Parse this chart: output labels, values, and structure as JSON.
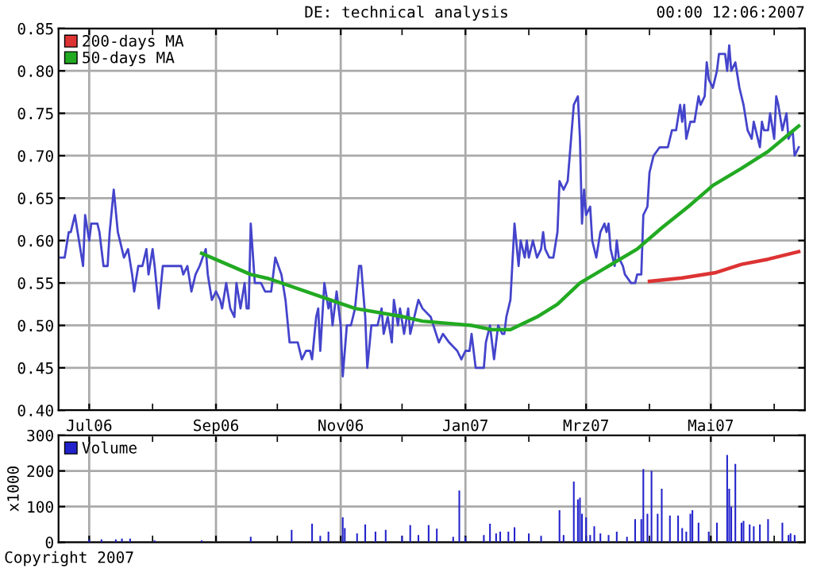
{
  "chart_data": [
    {
      "type": "line",
      "title": "DE: technical analysis",
      "annotations": [
        "00:00 12:06:2007",
        "Copyright 2007"
      ],
      "xlim": [
        "2006-06-16",
        "2007-06-16"
      ],
      "xticks": [
        {
          "value": "2006-07-01",
          "label": "Jul06"
        },
        {
          "value": "2006-08-01",
          "label": null
        },
        {
          "value": "2006-09-01",
          "label": "Sep06"
        },
        {
          "value": "2006-10-01",
          "label": null
        },
        {
          "value": "2006-11-01",
          "label": "Nov06"
        },
        {
          "value": "2006-12-01",
          "label": null
        },
        {
          "value": "2007-01-01",
          "label": "Jan07"
        },
        {
          "value": "2007-02-01",
          "label": null
        },
        {
          "value": "2007-03-01",
          "label": "Mrz07"
        },
        {
          "value": "2007-04-01",
          "label": null
        },
        {
          "value": "2007-05-01",
          "label": "Mai07"
        },
        {
          "value": "2007-06-01",
          "label": null
        }
      ],
      "ylim": [
        0.4,
        0.85
      ],
      "yticks": [
        {
          "value": 0.4,
          "label": "0.40"
        },
        {
          "value": 0.45,
          "label": "0.45"
        },
        {
          "value": 0.5,
          "label": "0.50"
        },
        {
          "value": 0.55,
          "label": "0.55"
        },
        {
          "value": 0.6,
          "label": "0.60"
        },
        {
          "value": 0.65,
          "label": "0.65"
        },
        {
          "value": 0.7,
          "label": "0.70"
        },
        {
          "value": 0.75,
          "label": "0.75"
        },
        {
          "value": 0.8,
          "label": "0.80"
        },
        {
          "value": 0.85,
          "label": "0.85"
        }
      ],
      "grid": true,
      "legend": "top left",
      "marker": "none",
      "line_style": "solid",
      "series": [
        {
          "color": "#4444cc",
          "x": [
            "2006-06-17",
            "2006-06-19",
            "2006-06-21",
            "2006-06-22",
            "2006-06-24",
            "2006-06-26",
            "2006-06-28",
            "2006-06-29",
            "2006-07-01",
            "2006-07-02",
            "2006-07-05",
            "2006-07-06",
            "2006-07-08",
            "2006-07-10",
            "2006-07-11",
            "2006-07-13",
            "2006-07-15",
            "2006-07-17",
            "2006-07-18",
            "2006-07-20",
            "2006-07-22",
            "2006-07-23",
            "2006-07-25",
            "2006-07-27",
            "2006-07-29",
            "2006-07-30",
            "2006-08-01",
            "2006-08-02",
            "2006-08-04",
            "2006-08-06",
            "2006-08-15",
            "2006-08-16",
            "2006-08-18",
            "2006-08-20",
            "2006-08-22",
            "2006-08-24",
            "2006-08-27",
            "2006-08-28",
            "2006-08-30",
            "2006-09-01",
            "2006-09-03",
            "2006-09-04",
            "2006-09-06",
            "2006-09-08",
            "2006-09-10",
            "2006-09-11",
            "2006-09-13",
            "2006-09-15",
            "2006-09-16",
            "2006-09-17",
            "2006-09-18",
            "2006-09-20",
            "2006-09-23",
            "2006-09-25",
            "2006-09-28",
            "2006-09-30",
            "2006-10-03",
            "2006-10-05",
            "2006-10-07",
            "2006-10-11",
            "2006-10-13",
            "2006-10-15",
            "2006-10-17",
            "2006-10-18",
            "2006-10-20",
            "2006-10-21",
            "2006-10-22",
            "2006-10-24",
            "2006-10-26",
            "2006-10-27",
            "2006-10-28",
            "2006-10-30",
            "2006-11-01",
            "2006-11-02",
            "2006-11-04",
            "2006-11-06",
            "2006-11-08",
            "2006-11-10",
            "2006-11-11",
            "2006-11-13",
            "2006-11-14",
            "2006-11-16",
            "2006-11-19",
            "2006-11-21",
            "2006-11-22",
            "2006-11-24",
            "2006-11-26",
            "2006-11-27",
            "2006-11-29",
            "2006-11-30",
            "2006-12-02",
            "2006-12-04",
            "2006-12-05",
            "2006-12-09",
            "2006-12-11",
            "2006-12-15",
            "2006-12-19",
            "2006-12-21",
            "2006-12-24",
            "2006-12-28",
            "2006-12-30",
            "2007-01-01",
            "2007-01-03",
            "2007-01-04",
            "2007-01-06",
            "2007-01-10",
            "2007-01-11",
            "2007-01-13",
            "2007-01-15",
            "2007-01-17",
            "2007-01-19",
            "2007-01-20",
            "2007-01-21",
            "2007-01-23",
            "2007-01-25",
            "2007-01-27",
            "2007-01-28",
            "2007-01-30",
            "2007-01-31",
            "2007-02-01",
            "2007-02-03",
            "2007-02-05",
            "2007-02-07",
            "2007-02-08",
            "2007-02-09",
            "2007-02-11",
            "2007-02-13",
            "2007-02-15",
            "2007-02-16",
            "2007-02-18",
            "2007-02-20",
            "2007-02-21",
            "2007-02-23",
            "2007-02-25",
            "2007-02-26",
            "2007-02-27",
            "2007-02-28",
            "2007-03-01",
            "2007-03-03",
            "2007-03-04",
            "2007-03-06",
            "2007-03-08",
            "2007-03-10",
            "2007-03-11",
            "2007-03-12",
            "2007-03-13",
            "2007-03-15",
            "2007-03-16",
            "2007-03-17",
            "2007-03-19",
            "2007-03-20",
            "2007-03-23",
            "2007-03-25",
            "2007-03-26",
            "2007-03-28",
            "2007-03-29",
            "2007-03-31",
            "2007-04-01",
            "2007-04-03",
            "2007-04-06",
            "2007-04-07",
            "2007-04-10",
            "2007-04-12",
            "2007-04-14",
            "2007-04-16",
            "2007-04-17",
            "2007-04-18",
            "2007-04-19",
            "2007-04-21",
            "2007-04-23",
            "2007-04-25",
            "2007-04-26",
            "2007-04-28",
            "2007-04-29",
            "2007-04-30",
            "2007-05-02",
            "2007-05-04",
            "2007-05-05",
            "2007-05-08",
            "2007-05-09",
            "2007-05-10",
            "2007-05-11",
            "2007-05-13",
            "2007-05-15",
            "2007-05-17",
            "2007-05-19",
            "2007-05-21",
            "2007-05-22",
            "2007-05-23",
            "2007-05-25",
            "2007-05-26",
            "2007-05-27",
            "2007-05-29",
            "2007-05-30",
            "2007-06-01",
            "2007-06-02",
            "2007-06-03",
            "2007-06-05",
            "2007-06-07",
            "2007-06-08",
            "2007-06-10",
            "2007-06-11",
            "2007-06-13"
          ],
          "values": [
            0.58,
            0.58,
            0.61,
            0.61,
            0.63,
            0.6,
            0.57,
            0.63,
            0.6,
            0.62,
            0.62,
            0.61,
            0.57,
            0.57,
            0.61,
            0.66,
            0.61,
            0.59,
            0.58,
            0.59,
            0.56,
            0.54,
            0.57,
            0.57,
            0.59,
            0.56,
            0.59,
            0.57,
            0.52,
            0.57,
            0.57,
            0.56,
            0.57,
            0.54,
            0.56,
            0.57,
            0.59,
            0.56,
            0.53,
            0.54,
            0.53,
            0.52,
            0.55,
            0.52,
            0.51,
            0.55,
            0.52,
            0.55,
            0.52,
            0.52,
            0.62,
            0.55,
            0.55,
            0.54,
            0.54,
            0.58,
            0.56,
            0.53,
            0.48,
            0.48,
            0.46,
            0.47,
            0.47,
            0.46,
            0.51,
            0.52,
            0.47,
            0.55,
            0.52,
            0.53,
            0.5,
            0.54,
            0.5,
            0.44,
            0.5,
            0.5,
            0.52,
            0.57,
            0.57,
            0.51,
            0.45,
            0.5,
            0.5,
            0.52,
            0.49,
            0.51,
            0.48,
            0.53,
            0.5,
            0.52,
            0.49,
            0.52,
            0.49,
            0.53,
            0.52,
            0.51,
            0.48,
            0.49,
            0.48,
            0.47,
            0.46,
            0.47,
            0.47,
            0.49,
            0.45,
            0.45,
            0.48,
            0.5,
            0.46,
            0.5,
            0.49,
            0.49,
            0.51,
            0.53,
            0.62,
            0.57,
            0.6,
            0.58,
            0.6,
            0.58,
            0.6,
            0.58,
            0.59,
            0.61,
            0.59,
            0.58,
            0.58,
            0.61,
            0.67,
            0.66,
            0.67,
            0.7,
            0.76,
            0.77,
            0.72,
            0.62,
            0.66,
            0.63,
            0.64,
            0.6,
            0.58,
            0.61,
            0.62,
            0.61,
            0.62,
            0.59,
            0.57,
            0.6,
            0.58,
            0.57,
            0.56,
            0.55,
            0.55,
            0.56,
            0.56,
            0.63,
            0.64,
            0.68,
            0.7,
            0.71,
            0.71,
            0.71,
            0.73,
            0.73,
            0.76,
            0.74,
            0.76,
            0.72,
            0.74,
            0.74,
            0.77,
            0.76,
            0.77,
            0.81,
            0.79,
            0.78,
            0.8,
            0.82,
            0.82,
            0.8,
            0.83,
            0.8,
            0.81,
            0.78,
            0.76,
            0.73,
            0.72,
            0.74,
            0.73,
            0.71,
            0.74,
            0.73,
            0.73,
            0.75,
            0.72,
            0.77,
            0.76,
            0.73,
            0.75,
            0.72,
            0.73,
            0.7,
            0.71
          ]
        },
        {
          "name": "200-days MA",
          "color": "#dd3333",
          "x": [
            "2007-04-01",
            "2007-04-17",
            "2007-05-03",
            "2007-05-16",
            "2007-05-29",
            "2007-06-13"
          ],
          "values": [
            0.552,
            0.556,
            0.562,
            0.572,
            0.578,
            0.587
          ]
        },
        {
          "name": "50-days MA",
          "color": "#22aa22",
          "x": [
            "2006-08-25",
            "2006-09-18",
            "2006-09-27",
            "2006-10-21",
            "2006-11-08",
            "2006-12-02",
            "2006-12-11",
            "2007-01-04",
            "2007-01-14",
            "2007-01-23",
            "2007-02-05",
            "2007-02-15",
            "2007-02-26",
            "2007-03-12",
            "2007-03-26",
            "2007-04-07",
            "2007-04-20",
            "2007-05-02",
            "2007-05-16",
            "2007-05-29",
            "2007-06-08",
            "2007-06-13"
          ],
          "values": [
            0.585,
            0.56,
            0.555,
            0.535,
            0.52,
            0.51,
            0.505,
            0.5,
            0.495,
            0.495,
            0.51,
            0.525,
            0.55,
            0.57,
            0.59,
            0.615,
            0.64,
            0.665,
            0.685,
            0.705,
            0.725,
            0.735
          ]
        }
      ]
    },
    {
      "type": "bar",
      "ylabel": "x1000",
      "xlim": [
        "2006-06-16",
        "2007-06-16"
      ],
      "tick_labels": "y",
      "ylim": [
        0,
        300
      ],
      "yticks": [
        0,
        100,
        200,
        300
      ],
      "grid": true,
      "legend": "top left",
      "series": [
        {
          "name": "Volume",
          "color": "#2222cc",
          "x": [
            "2006-07-01",
            "2006-07-07",
            "2006-07-14",
            "2006-07-17",
            "2006-07-21",
            "2006-08-02",
            "2006-08-25",
            "2006-09-18",
            "2006-10-08",
            "2006-10-18",
            "2006-10-22",
            "2006-10-26",
            "2006-11-02",
            "2006-11-03",
            "2006-11-09",
            "2006-11-13",
            "2006-11-18",
            "2006-11-23",
            "2006-12-01",
            "2006-12-05",
            "2006-12-09",
            "2006-12-14",
            "2006-12-18",
            "2006-12-26",
            "2006-12-29",
            "2007-01-01",
            "2007-01-10",
            "2007-01-13",
            "2007-01-16",
            "2007-01-18",
            "2007-01-22",
            "2007-01-25",
            "2007-02-01",
            "2007-02-07",
            "2007-02-16",
            "2007-02-18",
            "2007-02-23",
            "2007-02-25",
            "2007-02-26",
            "2007-02-27",
            "2007-03-01",
            "2007-03-03",
            "2007-03-05",
            "2007-03-08",
            "2007-03-12",
            "2007-03-16",
            "2007-03-21",
            "2007-03-25",
            "2007-03-28",
            "2007-03-29",
            "2007-03-31",
            "2007-04-02",
            "2007-04-05",
            "2007-04-07",
            "2007-04-11",
            "2007-04-15",
            "2007-04-17",
            "2007-04-19",
            "2007-04-21",
            "2007-04-22",
            "2007-04-25",
            "2007-04-30",
            "2007-05-04",
            "2007-05-09",
            "2007-05-10",
            "2007-05-11",
            "2007-05-13",
            "2007-05-16",
            "2007-05-17",
            "2007-05-20",
            "2007-05-22",
            "2007-05-25",
            "2007-05-29",
            "2007-06-05",
            "2007-06-08",
            "2007-06-09",
            "2007-06-11"
          ],
          "values": [
            8,
            8,
            8,
            10,
            10,
            5,
            5,
            15,
            35,
            52,
            18,
            30,
            70,
            40,
            25,
            50,
            30,
            35,
            18,
            48,
            20,
            48,
            38,
            15,
            145,
            15,
            20,
            52,
            25,
            30,
            30,
            42,
            25,
            18,
            90,
            20,
            170,
            120,
            125,
            80,
            70,
            20,
            45,
            25,
            20,
            30,
            15,
            65,
            65,
            205,
            80,
            200,
            80,
            150,
            75,
            75,
            40,
            30,
            80,
            90,
            55,
            30,
            55,
            245,
            150,
            100,
            220,
            55,
            60,
            50,
            45,
            50,
            65,
            55,
            20,
            25,
            20
          ]
        }
      ]
    }
  ]
}
